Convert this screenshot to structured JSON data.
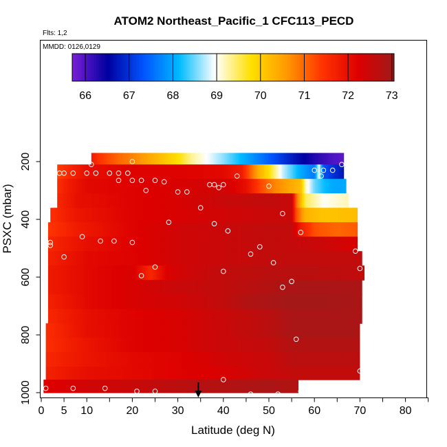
{
  "chart_data": {
    "type": "heatmap",
    "title": "ATOM2 Northeast_Pacific_1 CFC113_PECD",
    "flights_label": "Flts: 1,2",
    "dates_label": "MMDD: 0126,0129",
    "xlabel": "Latitude (deg N)",
    "ylabel": "PSXC (mbar)",
    "xlim": [
      0,
      85
    ],
    "ylim": [
      1000,
      80
    ],
    "x_ticks": [
      0,
      5,
      10,
      20,
      30,
      40,
      50,
      60,
      70,
      80
    ],
    "x_minor_ticks": [
      15,
      25,
      35,
      45,
      55,
      65,
      75,
      85
    ],
    "y_ticks": [
      200,
      400,
      600,
      800,
      1000
    ],
    "colorbar": {
      "ticks": [
        66,
        67,
        68,
        69,
        70,
        71,
        72,
        73
      ],
      "min": 65.7,
      "max": 73.05,
      "colors": [
        "#7a1fd6",
        "#0000a0",
        "#0055ff",
        "#00bbff",
        "#ffffff",
        "#ffe000",
        "#ff9900",
        "#ff3300",
        "#dd0000",
        "#a01a1a"
      ]
    },
    "layers": [
      {
        "p_top": 170,
        "p_bot": 210,
        "lat_min": 11,
        "lat_max": 66.5,
        "points": [
          [
            11,
            71.8
          ],
          [
            13,
            71.4
          ],
          [
            17,
            71.0
          ],
          [
            20,
            70.8
          ],
          [
            24,
            70.4
          ],
          [
            27,
            70.1
          ],
          [
            30,
            69.8
          ],
          [
            33,
            69.3
          ],
          [
            36,
            69.0
          ],
          [
            40,
            68.6
          ],
          [
            45,
            68.0
          ],
          [
            50,
            67.4
          ],
          [
            55,
            66.8
          ],
          [
            60,
            66.3
          ],
          [
            64,
            66.0
          ],
          [
            66.5,
            65.9
          ]
        ]
      },
      {
        "p_top": 210,
        "p_bot": 260,
        "lat_min": 3.5,
        "lat_max": 66.5,
        "points": [
          [
            3.5,
            71.3
          ],
          [
            6,
            71.6
          ],
          [
            10,
            72.0
          ],
          [
            20,
            72.2
          ],
          [
            30,
            72.2
          ],
          [
            40,
            72.1
          ],
          [
            44,
            71.8
          ],
          [
            46,
            71.0
          ],
          [
            48,
            70.3
          ],
          [
            50,
            69.8
          ],
          [
            53,
            68.8
          ],
          [
            57,
            68.0
          ],
          [
            60,
            67.6
          ],
          [
            61,
            69.0
          ],
          [
            62,
            67.3
          ],
          [
            64,
            67.0
          ],
          [
            66.5,
            66.7
          ]
        ]
      },
      {
        "p_top": 260,
        "p_bot": 310,
        "lat_min": 3.5,
        "lat_max": 67,
        "points": [
          [
            3.5,
            71.5
          ],
          [
            6,
            71.8
          ],
          [
            10,
            72.1
          ],
          [
            20,
            72.2
          ],
          [
            30,
            72.3
          ],
          [
            40,
            72.4
          ],
          [
            45,
            72.0
          ],
          [
            48,
            71.3
          ],
          [
            51,
            70.8
          ],
          [
            54,
            70.5
          ],
          [
            57,
            70.2
          ],
          [
            58,
            69.2
          ],
          [
            60,
            68.5
          ],
          [
            62,
            68.2
          ],
          [
            64,
            68.0
          ],
          [
            67,
            68.0
          ]
        ]
      },
      {
        "p_top": 310,
        "p_bot": 360,
        "lat_min": 3.5,
        "lat_max": 67.5,
        "points": [
          [
            3.5,
            71.6
          ],
          [
            8,
            72.0
          ],
          [
            20,
            72.2
          ],
          [
            30,
            72.3
          ],
          [
            40,
            72.5
          ],
          [
            50,
            72.6
          ],
          [
            55,
            72.5
          ],
          [
            56,
            71.0
          ],
          [
            58,
            69.5
          ],
          [
            62,
            69.0
          ],
          [
            67.5,
            69.2
          ]
        ]
      },
      {
        "p_top": 360,
        "p_bot": 410,
        "lat_min": 2,
        "lat_max": 69.5,
        "points": [
          [
            2,
            71.5
          ],
          [
            8,
            71.9
          ],
          [
            20,
            72.2
          ],
          [
            30,
            72.3
          ],
          [
            40,
            72.4
          ],
          [
            50,
            72.5
          ],
          [
            55,
            72.5
          ],
          [
            56,
            71.2
          ],
          [
            58,
            70.3
          ],
          [
            62,
            70.1
          ],
          [
            69.5,
            70.2
          ]
        ]
      },
      {
        "p_top": 410,
        "p_bot": 460,
        "lat_min": 1.5,
        "lat_max": 69.5,
        "points": [
          [
            1.5,
            71.4
          ],
          [
            8,
            71.8
          ],
          [
            20,
            72.2
          ],
          [
            30,
            72.4
          ],
          [
            40,
            72.5
          ],
          [
            50,
            72.6
          ],
          [
            55,
            72.6
          ],
          [
            57,
            71.8
          ],
          [
            60,
            71.2
          ],
          [
            65,
            71.0
          ],
          [
            69.5,
            71.1
          ]
        ]
      },
      {
        "p_top": 460,
        "p_bot": 510,
        "lat_min": 1.5,
        "lat_max": 69.5,
        "points": [
          [
            1.5,
            71.6
          ],
          [
            10,
            72.0
          ],
          [
            20,
            72.2
          ],
          [
            30,
            72.4
          ],
          [
            40,
            72.5
          ],
          [
            50,
            72.6
          ],
          [
            60,
            72.5
          ],
          [
            65,
            72.4
          ],
          [
            69.5,
            72.3
          ]
        ]
      },
      {
        "p_top": 510,
        "p_bot": 560,
        "lat_min": 1.5,
        "lat_max": 70.5,
        "points": [
          [
            1.5,
            71.7
          ],
          [
            10,
            72.1
          ],
          [
            20,
            72.2
          ],
          [
            30,
            72.4
          ],
          [
            40,
            72.5
          ],
          [
            50,
            72.6
          ],
          [
            60,
            72.6
          ],
          [
            70.5,
            72.6
          ]
        ]
      },
      {
        "p_top": 560,
        "p_bot": 610,
        "lat_min": 1.5,
        "lat_max": 71,
        "points": [
          [
            1.5,
            71.8
          ],
          [
            10,
            72.1
          ],
          [
            20,
            72.3
          ],
          [
            24,
            71.6
          ],
          [
            28,
            72.3
          ],
          [
            35,
            72.5
          ],
          [
            40,
            72.6
          ],
          [
            50,
            72.7
          ],
          [
            60,
            72.7
          ],
          [
            71,
            72.6
          ]
        ]
      },
      {
        "p_top": 610,
        "p_bot": 660,
        "lat_min": 1.5,
        "lat_max": 70.5,
        "points": [
          [
            1.5,
            71.8
          ],
          [
            10,
            72.1
          ],
          [
            20,
            72.3
          ],
          [
            30,
            72.5
          ],
          [
            40,
            72.6
          ],
          [
            50,
            72.8
          ],
          [
            55,
            72.9
          ],
          [
            60,
            72.9
          ],
          [
            70.5,
            72.9
          ]
        ]
      },
      {
        "p_top": 660,
        "p_bot": 710,
        "lat_min": 1.5,
        "lat_max": 70.5,
        "points": [
          [
            1.5,
            71.7
          ],
          [
            10,
            72.1
          ],
          [
            20,
            72.3
          ],
          [
            30,
            72.4
          ],
          [
            40,
            72.6
          ],
          [
            45,
            72.8
          ],
          [
            50,
            72.9
          ],
          [
            55,
            73.0
          ],
          [
            60,
            73.0
          ],
          [
            70.5,
            72.9
          ]
        ]
      },
      {
        "p_top": 710,
        "p_bot": 760,
        "lat_min": 1.5,
        "lat_max": 70.5,
        "points": [
          [
            1.5,
            71.6
          ],
          [
            10,
            72.0
          ],
          [
            20,
            72.2
          ],
          [
            30,
            72.3
          ],
          [
            40,
            72.5
          ],
          [
            50,
            72.7
          ],
          [
            55,
            72.9
          ],
          [
            60,
            72.9
          ],
          [
            70.5,
            72.9
          ]
        ]
      },
      {
        "p_top": 760,
        "p_bot": 810,
        "lat_min": 1,
        "lat_max": 70,
        "points": [
          [
            1,
            71.5
          ],
          [
            10,
            72.0
          ],
          [
            20,
            72.2
          ],
          [
            30,
            72.3
          ],
          [
            40,
            72.5
          ],
          [
            50,
            72.7
          ],
          [
            55,
            72.9
          ],
          [
            60,
            72.9
          ],
          [
            70,
            72.9
          ]
        ]
      },
      {
        "p_top": 810,
        "p_bot": 860,
        "lat_min": 1,
        "lat_max": 70,
        "points": [
          [
            1,
            71.5
          ],
          [
            10,
            71.9
          ],
          [
            20,
            72.2
          ],
          [
            30,
            72.3
          ],
          [
            40,
            72.5
          ],
          [
            50,
            72.6
          ],
          [
            55,
            72.8
          ],
          [
            60,
            72.8
          ],
          [
            70,
            72.8
          ]
        ]
      },
      {
        "p_top": 860,
        "p_bot": 910,
        "lat_min": 1,
        "lat_max": 70,
        "points": [
          [
            1,
            71.6
          ],
          [
            10,
            71.9
          ],
          [
            20,
            72.1
          ],
          [
            30,
            72.2
          ],
          [
            40,
            72.4
          ],
          [
            50,
            72.5
          ],
          [
            55,
            72.7
          ],
          [
            60,
            72.7
          ],
          [
            70,
            72.7
          ]
        ]
      },
      {
        "p_top": 910,
        "p_bot": 955,
        "lat_min": 1,
        "lat_max": 70,
        "points": [
          [
            1,
            71.7
          ],
          [
            10,
            72.0
          ],
          [
            20,
            72.1
          ],
          [
            30,
            72.2
          ],
          [
            40,
            72.3
          ],
          [
            50,
            72.5
          ],
          [
            55,
            72.6
          ],
          [
            60,
            72.6
          ],
          [
            70,
            72.6
          ]
        ]
      },
      {
        "p_top": 955,
        "p_bot": 1000,
        "lat_min": 0.5,
        "lat_max": 56.5,
        "points": [
          [
            0.5,
            72.2
          ],
          [
            10,
            72.4
          ],
          [
            20,
            72.5
          ],
          [
            30,
            72.7
          ],
          [
            40,
            72.8
          ],
          [
            50,
            72.9
          ],
          [
            56.5,
            72.8
          ]
        ]
      }
    ],
    "samples": [
      [
        11,
        210
      ],
      [
        20,
        200
      ],
      [
        4,
        240
      ],
      [
        5,
        240
      ],
      [
        7,
        240
      ],
      [
        10,
        240
      ],
      [
        12,
        240
      ],
      [
        15,
        240
      ],
      [
        17,
        240
      ],
      [
        19,
        240
      ],
      [
        60,
        230
      ],
      [
        62,
        230
      ],
      [
        64,
        230
      ],
      [
        66,
        210
      ],
      [
        61.5,
        250
      ],
      [
        17,
        265
      ],
      [
        20,
        265
      ],
      [
        22,
        265
      ],
      [
        25,
        265
      ],
      [
        27,
        270
      ],
      [
        23,
        300
      ],
      [
        30,
        305
      ],
      [
        32,
        305
      ],
      [
        37,
        280
      ],
      [
        38,
        280
      ],
      [
        40,
        280
      ],
      [
        39,
        290
      ],
      [
        43,
        250
      ],
      [
        50,
        285
      ],
      [
        35,
        360
      ],
      [
        53,
        380
      ],
      [
        38,
        415
      ],
      [
        41,
        440
      ],
      [
        28,
        410
      ],
      [
        57,
        445
      ],
      [
        2,
        480
      ],
      [
        2,
        490
      ],
      [
        9,
        460
      ],
      [
        13,
        475
      ],
      [
        16,
        475
      ],
      [
        20,
        480
      ],
      [
        5,
        530
      ],
      [
        46,
        520
      ],
      [
        48,
        495
      ],
      [
        51,
        550
      ],
      [
        25,
        565
      ],
      [
        22,
        595
      ],
      [
        40,
        580
      ],
      [
        53,
        635
      ],
      [
        55,
        615
      ],
      [
        70,
        570
      ],
      [
        69,
        510
      ],
      [
        56,
        815
      ],
      [
        70,
        925
      ],
      [
        40,
        955
      ],
      [
        1,
        985
      ],
      [
        7,
        985
      ],
      [
        14,
        985
      ],
      [
        21,
        995
      ],
      [
        25,
        995
      ],
      [
        46,
        1005
      ],
      [
        52,
        1005
      ],
      [
        57,
        995
      ]
    ],
    "marker_lat": 34.5,
    "data_labels": {
      "x_tick_labels": [
        "0",
        "5",
        "10",
        "20",
        "30",
        "40",
        "50",
        "60",
        "70",
        "80"
      ],
      "y_tick_labels": [
        "200",
        "400",
        "600",
        "800",
        "1000"
      ],
      "colorbar_labels": [
        "66",
        "67",
        "68",
        "69",
        "70",
        "71",
        "72",
        "73"
      ]
    }
  }
}
